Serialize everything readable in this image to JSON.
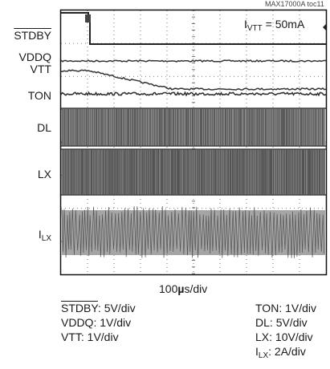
{
  "chart_data": {
    "type": "line",
    "figure_id": "MAX17000A toc11",
    "annotation": {
      "main": "I",
      "sub": "VTT",
      "rest": " = 50mA"
    },
    "timebase": {
      "value": "100",
      "mu": "µ",
      "rest": "s/div"
    },
    "traces": [
      {
        "name": "STDBY",
        "overbar": true,
        "scale": "5V/div"
      },
      {
        "name": "VDDQ",
        "scale": "1V/div"
      },
      {
        "name": "VTT",
        "scale": "1V/div"
      },
      {
        "name": "TON",
        "scale": "1V/div"
      },
      {
        "name": "DL",
        "scale": "5V/div"
      },
      {
        "name": "LX",
        "scale": "10V/div"
      },
      {
        "name": "I",
        "sub": "LX",
        "scale": "2A/div"
      }
    ]
  }
}
